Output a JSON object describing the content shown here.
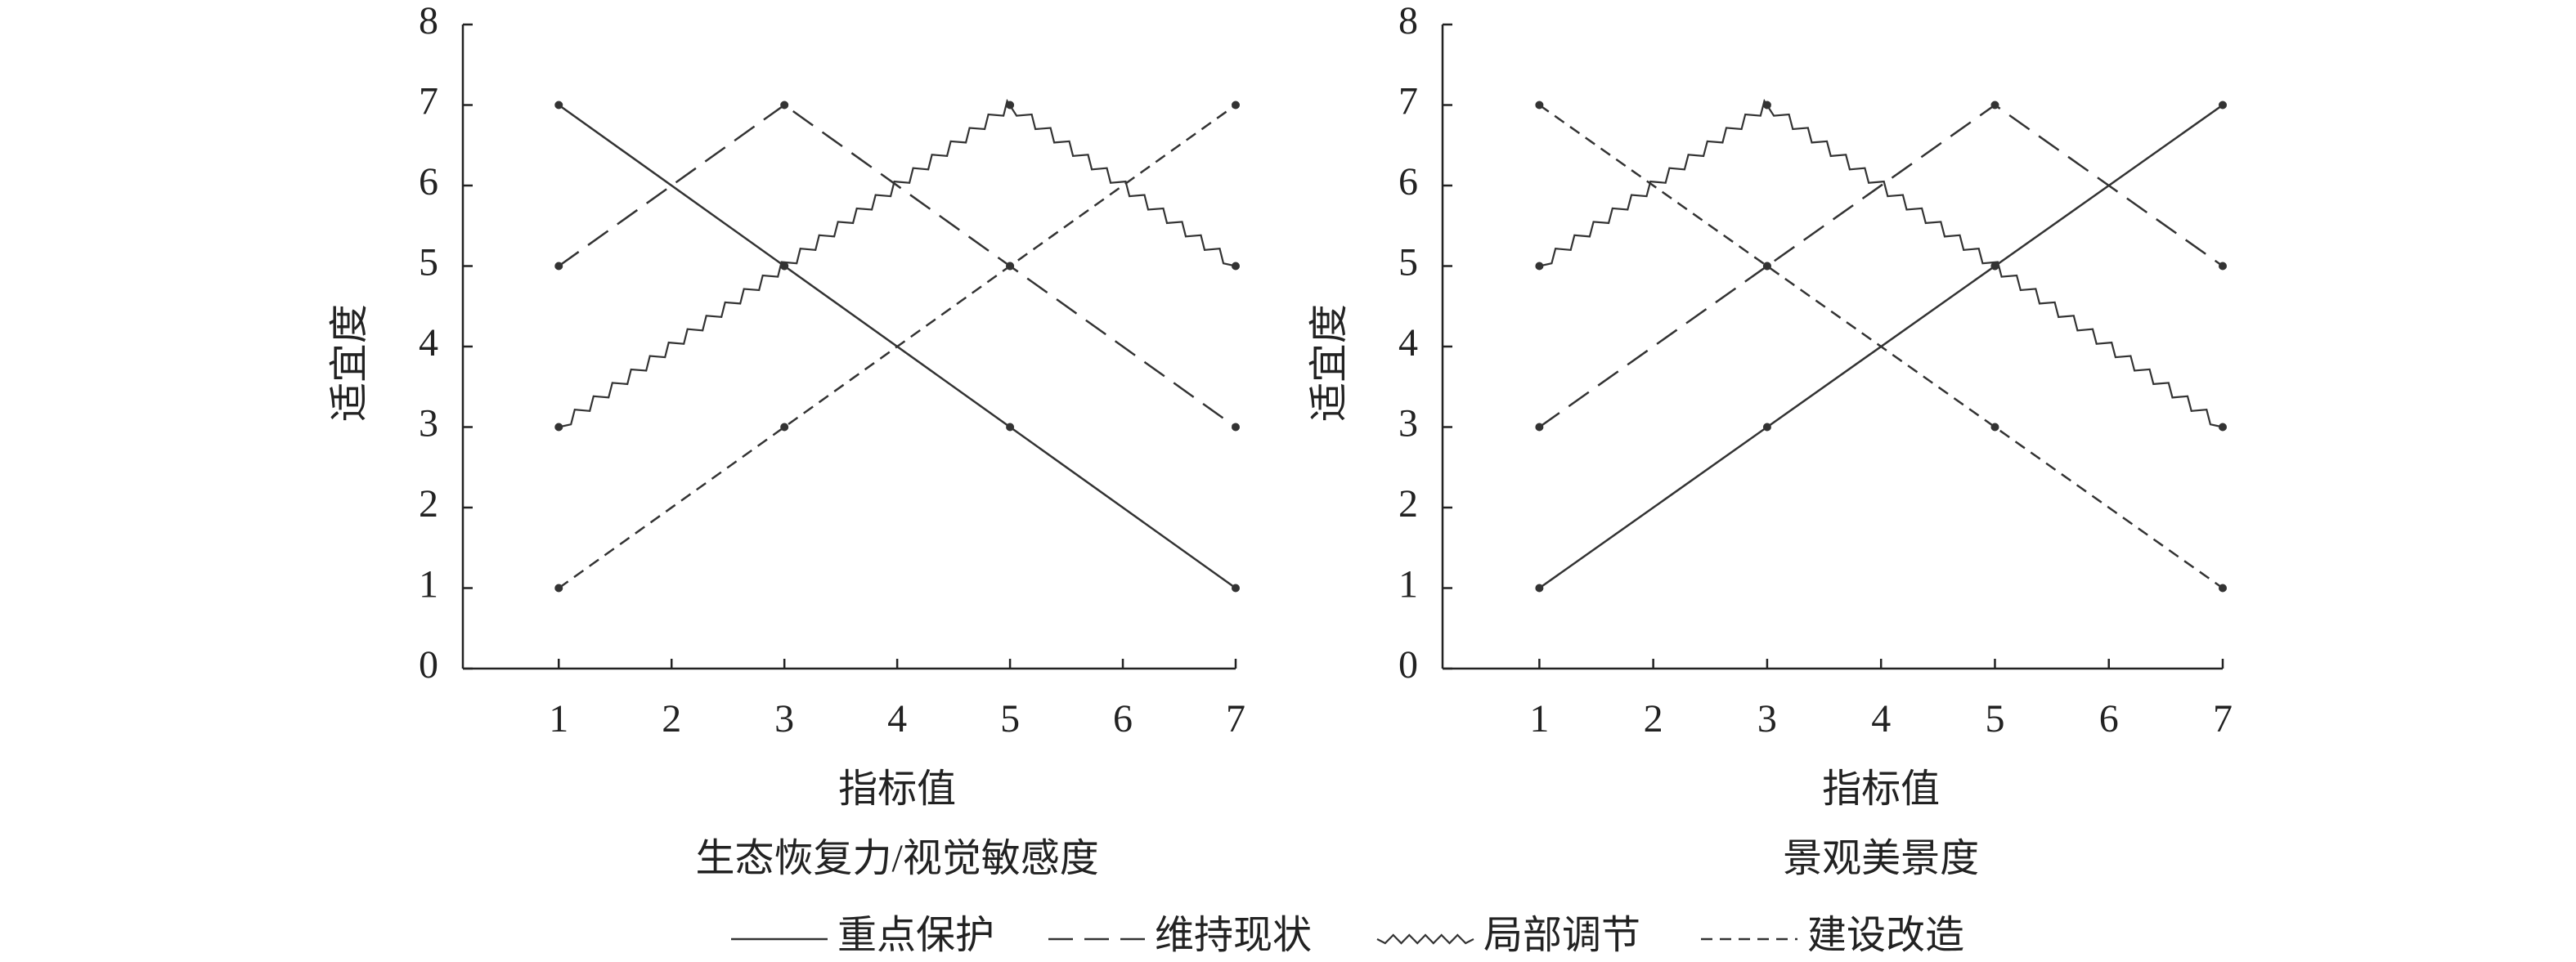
{
  "chart_data": [
    {
      "type": "line",
      "x_label": "指标值",
      "y_label": "适宜度",
      "caption": "生态恢复力/视觉敏感度",
      "x": [
        1,
        3,
        5,
        7
      ],
      "xlim": [
        0.15,
        7
      ],
      "xticks": [
        1,
        2,
        3,
        4,
        5,
        6,
        7
      ],
      "ylim": [
        0,
        8
      ],
      "yticks": [
        0,
        1,
        2,
        3,
        4,
        5,
        6,
        7,
        8
      ],
      "series": [
        {
          "name": "重点保护",
          "color": "#333333",
          "style": "solid",
          "values": [
            7,
            5,
            3,
            1
          ]
        },
        {
          "name": "维持现状",
          "color": "#333333",
          "style": "long-dash",
          "values": [
            5,
            7,
            5,
            3
          ]
        },
        {
          "name": "局部调节",
          "color": "#333333",
          "style": "zigzag",
          "values": [
            3,
            5,
            7,
            5
          ]
        },
        {
          "name": "建设改造",
          "color": "#333333",
          "style": "short-dash",
          "values": [
            1,
            3,
            5,
            7
          ]
        }
      ]
    },
    {
      "type": "line",
      "x_label": "指标值",
      "y_label": "适宜度",
      "caption": "景观美景度",
      "x": [
        1,
        3,
        5,
        7
      ],
      "xlim": [
        0.15,
        7
      ],
      "xticks": [
        1,
        2,
        3,
        4,
        5,
        6,
        7
      ],
      "ylim": [
        0,
        8
      ],
      "yticks": [
        0,
        1,
        2,
        3,
        4,
        5,
        6,
        7,
        8
      ],
      "series": [
        {
          "name": "重点保护",
          "color": "#333333",
          "style": "solid",
          "values": [
            1,
            3,
            5,
            7
          ]
        },
        {
          "name": "维持现状",
          "color": "#333333",
          "style": "long-dash",
          "values": [
            3,
            5,
            7,
            5
          ]
        },
        {
          "name": "局部调节",
          "color": "#333333",
          "style": "zigzag",
          "values": [
            5,
            7,
            5,
            3
          ]
        },
        {
          "name": "建设改造",
          "color": "#333333",
          "style": "short-dash",
          "values": [
            7,
            5,
            3,
            1
          ]
        }
      ]
    }
  ]
}
